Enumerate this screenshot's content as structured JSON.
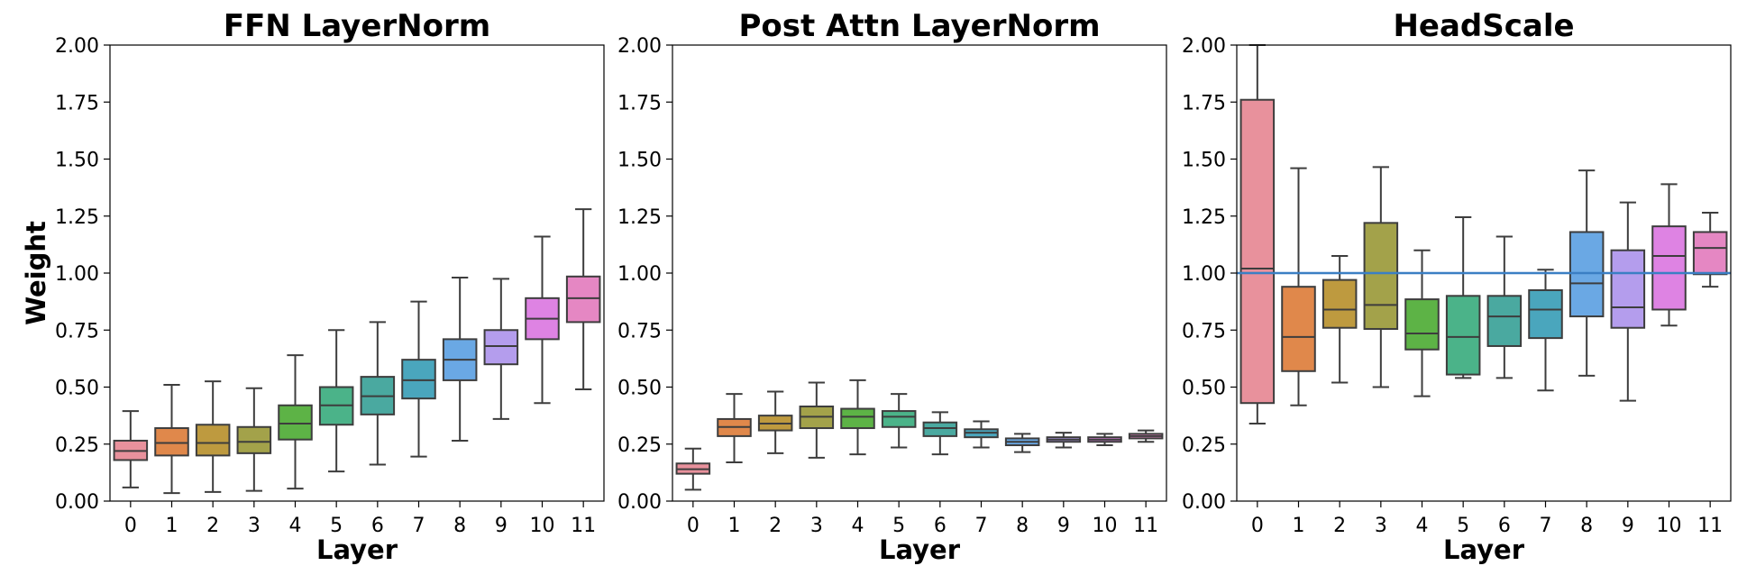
{
  "palette": [
    "#e8919c",
    "#e0884b",
    "#be9a3f",
    "#a3a24a",
    "#5db346",
    "#4bb389",
    "#4aa9a0",
    "#4aa6bd",
    "#6aa8e4",
    "#b49ded",
    "#de83e3",
    "#e587c3"
  ],
  "chart_data": [
    {
      "type": "box",
      "title": "FFN LayerNorm",
      "xlabel": "Layer",
      "ylabel": "Weight",
      "ylim": [
        0,
        2
      ],
      "yticks": [
        "0.00",
        "0.25",
        "0.50",
        "0.75",
        "1.00",
        "1.25",
        "1.50",
        "1.75",
        "2.00"
      ],
      "categories": [
        "0",
        "1",
        "2",
        "3",
        "4",
        "5",
        "6",
        "7",
        "8",
        "9",
        "10",
        "11"
      ],
      "boxes": [
        {
          "min": 0.06,
          "q1": 0.18,
          "median": 0.22,
          "q3": 0.265,
          "max": 0.395
        },
        {
          "min": 0.035,
          "q1": 0.2,
          "median": 0.255,
          "q3": 0.32,
          "max": 0.51
        },
        {
          "min": 0.04,
          "q1": 0.2,
          "median": 0.255,
          "q3": 0.335,
          "max": 0.525
        },
        {
          "min": 0.045,
          "q1": 0.21,
          "median": 0.26,
          "q3": 0.325,
          "max": 0.495
        },
        {
          "min": 0.055,
          "q1": 0.27,
          "median": 0.34,
          "q3": 0.42,
          "max": 0.64
        },
        {
          "min": 0.13,
          "q1": 0.335,
          "median": 0.42,
          "q3": 0.5,
          "max": 0.75
        },
        {
          "min": 0.16,
          "q1": 0.38,
          "median": 0.46,
          "q3": 0.545,
          "max": 0.785
        },
        {
          "min": 0.195,
          "q1": 0.45,
          "median": 0.53,
          "q3": 0.62,
          "max": 0.875
        },
        {
          "min": 0.265,
          "q1": 0.53,
          "median": 0.62,
          "q3": 0.71,
          "max": 0.98
        },
        {
          "min": 0.36,
          "q1": 0.6,
          "median": 0.68,
          "q3": 0.75,
          "max": 0.975
        },
        {
          "min": 0.43,
          "q1": 0.71,
          "median": 0.8,
          "q3": 0.89,
          "max": 1.16
        },
        {
          "min": 0.49,
          "q1": 0.785,
          "median": 0.89,
          "q3": 0.985,
          "max": 1.28
        }
      ]
    },
    {
      "type": "box",
      "title": "Post Attn LayerNorm",
      "xlabel": "Layer",
      "ylabel": "",
      "ylim": [
        0,
        2
      ],
      "yticks": [
        "0.00",
        "0.25",
        "0.50",
        "0.75",
        "1.00",
        "1.25",
        "1.50",
        "1.75",
        "2.00"
      ],
      "categories": [
        "0",
        "1",
        "2",
        "3",
        "4",
        "5",
        "6",
        "7",
        "8",
        "9",
        "10",
        "11"
      ],
      "boxes": [
        {
          "min": 0.05,
          "q1": 0.12,
          "median": 0.14,
          "q3": 0.165,
          "max": 0.23
        },
        {
          "min": 0.17,
          "q1": 0.285,
          "median": 0.325,
          "q3": 0.36,
          "max": 0.47
        },
        {
          "min": 0.21,
          "q1": 0.31,
          "median": 0.34,
          "q3": 0.375,
          "max": 0.48
        },
        {
          "min": 0.19,
          "q1": 0.32,
          "median": 0.37,
          "q3": 0.415,
          "max": 0.52
        },
        {
          "min": 0.205,
          "q1": 0.32,
          "median": 0.37,
          "q3": 0.405,
          "max": 0.53
        },
        {
          "min": 0.235,
          "q1": 0.325,
          "median": 0.37,
          "q3": 0.395,
          "max": 0.47
        },
        {
          "min": 0.205,
          "q1": 0.285,
          "median": 0.32,
          "q3": 0.345,
          "max": 0.39
        },
        {
          "min": 0.235,
          "q1": 0.28,
          "median": 0.3,
          "q3": 0.315,
          "max": 0.35
        },
        {
          "min": 0.215,
          "q1": 0.245,
          "median": 0.26,
          "q3": 0.275,
          "max": 0.295
        },
        {
          "min": 0.235,
          "q1": 0.26,
          "median": 0.27,
          "q3": 0.28,
          "max": 0.3
        },
        {
          "min": 0.245,
          "q1": 0.26,
          "median": 0.27,
          "q3": 0.28,
          "max": 0.295
        },
        {
          "min": 0.26,
          "q1": 0.275,
          "median": 0.285,
          "q3": 0.295,
          "max": 0.31
        }
      ]
    },
    {
      "type": "box",
      "title": "HeadScale",
      "xlabel": "Layer",
      "ylabel": "",
      "ylim": [
        0,
        2
      ],
      "yticks": [
        "0.00",
        "0.25",
        "0.50",
        "0.75",
        "1.00",
        "1.25",
        "1.50",
        "1.75",
        "2.00"
      ],
      "categories": [
        "0",
        "1",
        "2",
        "3",
        "4",
        "5",
        "6",
        "7",
        "8",
        "9",
        "10",
        "11"
      ],
      "hline": {
        "y": 1.0,
        "color": "#3b7fc4"
      },
      "boxes": [
        {
          "min": 0.34,
          "q1": 0.43,
          "median": 1.02,
          "q3": 1.76,
          "max": 2.0
        },
        {
          "min": 0.42,
          "q1": 0.57,
          "median": 0.72,
          "q3": 0.94,
          "max": 1.46
        },
        {
          "min": 0.52,
          "q1": 0.76,
          "median": 0.84,
          "q3": 0.97,
          "max": 1.075
        },
        {
          "min": 0.5,
          "q1": 0.755,
          "median": 0.86,
          "q3": 1.22,
          "max": 1.465
        },
        {
          "min": 0.46,
          "q1": 0.665,
          "median": 0.735,
          "q3": 0.885,
          "max": 1.1
        },
        {
          "min": 0.54,
          "q1": 0.555,
          "median": 0.72,
          "q3": 0.9,
          "max": 1.245
        },
        {
          "min": 0.54,
          "q1": 0.68,
          "median": 0.81,
          "q3": 0.9,
          "max": 1.16
        },
        {
          "min": 0.485,
          "q1": 0.715,
          "median": 0.84,
          "q3": 0.925,
          "max": 1.015
        },
        {
          "min": 0.55,
          "q1": 0.81,
          "median": 0.955,
          "q3": 1.18,
          "max": 1.45
        },
        {
          "min": 0.44,
          "q1": 0.76,
          "median": 0.85,
          "q3": 1.1,
          "max": 1.31
        },
        {
          "min": 0.77,
          "q1": 0.84,
          "median": 1.075,
          "q3": 1.205,
          "max": 1.39
        },
        {
          "min": 0.94,
          "q1": 0.995,
          "median": 1.11,
          "q3": 1.18,
          "max": 1.265
        }
      ]
    }
  ]
}
